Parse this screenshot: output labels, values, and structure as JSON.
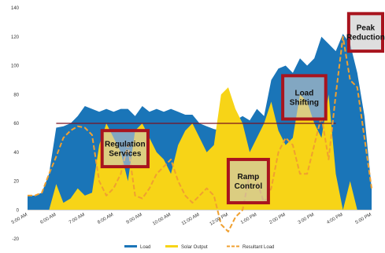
{
  "chart_data": {
    "type": "area",
    "title": "",
    "xlabel": "",
    "ylabel": "",
    "ylim": [
      -20,
      140
    ],
    "y_ticks": [
      -20,
      0,
      20,
      40,
      60,
      80,
      100,
      120,
      140
    ],
    "x_tick_labels": [
      "5:00 AM",
      "6:00 AM",
      "7:00 AM",
      "8:00 AM",
      "9:00 AM",
      "10:00 AM",
      "11:00 AM",
      "12:00 PM",
      "1:00 PM",
      "2:00 PM",
      "3:00 PM",
      "4:00 PM",
      "5:00 PM"
    ],
    "x": [
      5.0,
      5.25,
      5.5,
      5.75,
      6.0,
      6.25,
      6.5,
      6.75,
      7.0,
      7.25,
      7.5,
      7.75,
      8.0,
      8.25,
      8.5,
      8.75,
      9.0,
      9.25,
      9.5,
      9.75,
      10.0,
      10.25,
      10.5,
      10.75,
      11.0,
      11.25,
      11.5,
      11.75,
      12.0,
      12.25,
      12.5,
      12.75,
      13.0,
      13.25,
      13.5,
      13.75,
      14.0,
      14.25,
      14.5,
      14.75,
      15.0,
      15.25,
      15.5,
      15.75,
      16.0,
      16.25,
      16.5,
      16.75,
      17.0
    ],
    "series": [
      {
        "name": "Load",
        "color": "#1a75b8",
        "values": [
          10,
          10,
          12,
          25,
          57,
          58,
          60,
          65,
          72,
          70,
          68,
          70,
          68,
          70,
          70,
          65,
          72,
          68,
          70,
          68,
          70,
          68,
          66,
          66,
          60,
          58,
          56,
          55,
          58,
          62,
          65,
          62,
          70,
          65,
          90,
          98,
          100,
          95,
          105,
          100,
          105,
          120,
          115,
          110,
          122,
          115,
          95,
          65,
          15
        ]
      },
      {
        "name": "Solar Output",
        "color": "#f7d417",
        "values": [
          0,
          0,
          0,
          0,
          18,
          5,
          8,
          15,
          10,
          12,
          45,
          60,
          50,
          40,
          20,
          55,
          60,
          50,
          40,
          35,
          25,
          45,
          55,
          60,
          50,
          40,
          45,
          80,
          85,
          70,
          60,
          40,
          50,
          60,
          75,
          55,
          45,
          50,
          80,
          75,
          60,
          50,
          80,
          25,
          0,
          20,
          0,
          0,
          0
        ]
      },
      {
        "name": "Resultant Load",
        "color": "#f0a030",
        "values": [
          10,
          10,
          12,
          25,
          37,
          50,
          55,
          58,
          57,
          52,
          20,
          10,
          15,
          25,
          45,
          10,
          8,
          15,
          25,
          30,
          35,
          20,
          10,
          5,
          10,
          15,
          10,
          -10,
          -15,
          -5,
          0,
          25,
          20,
          5,
          15,
          40,
          50,
          45,
          25,
          25,
          45,
          65,
          35,
          80,
          120,
          90,
          85,
          50,
          15
        ]
      }
    ],
    "reference_line": {
      "value": 60,
      "color": "#7a1020"
    },
    "legend": {
      "position": "bottom",
      "entries": [
        "Load",
        "Solar Output",
        "Resultant Load"
      ]
    },
    "annotations": [
      {
        "label_lines": [
          "Regulation",
          "Services"
        ],
        "x_from": 7.6,
        "x_to": 9.2,
        "y_from": 30,
        "y_to": 55
      },
      {
        "label_lines": [
          "Ramp",
          "Control"
        ],
        "x_from": 12.0,
        "x_to": 13.4,
        "y_from": 5,
        "y_to": 35
      },
      {
        "label_lines": [
          "Load",
          "Shifting"
        ],
        "x_from": 13.9,
        "x_to": 15.4,
        "y_from": 63,
        "y_to": 93
      },
      {
        "label_lines": [
          "Peak",
          "Reduction"
        ],
        "x_from": 16.2,
        "x_to": 17.5,
        "y_from": 110,
        "y_to": 136
      }
    ],
    "grid": false
  }
}
